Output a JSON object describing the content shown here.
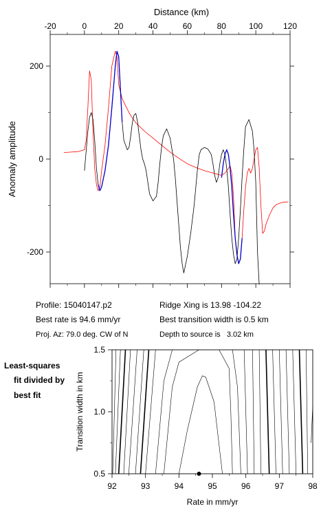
{
  "chart_data": [
    {
      "type": "line",
      "title": "",
      "xlabel": "Distance (km)",
      "ylabel": "Anomaly amplitude",
      "xlim": [
        -20,
        120
      ],
      "ylim": [
        -270,
        270
      ],
      "xticks": [
        "-20",
        "0",
        "20",
        "40",
        "60",
        "80",
        "100",
        "120"
      ],
      "yticks": [
        "200",
        "0",
        "-200"
      ],
      "grid": false,
      "series": [
        {
          "color": "#000000",
          "x": [
            0,
            2,
            3,
            4,
            5,
            6,
            7,
            8,
            9,
            10,
            12,
            14,
            16,
            18,
            19,
            20,
            21,
            22,
            23,
            25,
            26,
            27,
            28,
            29,
            30,
            31,
            32,
            33,
            34,
            35,
            36,
            37,
            38,
            40,
            42,
            43,
            44,
            45,
            46,
            48,
            50,
            52,
            53,
            54,
            55,
            56,
            57,
            58,
            60,
            62,
            64,
            65,
            66,
            67,
            68,
            70,
            72,
            74,
            75,
            76,
            77,
            78,
            79,
            80,
            81,
            82,
            83,
            84,
            85,
            86,
            87,
            88,
            89,
            90,
            91,
            92,
            93,
            94,
            96,
            98,
            99,
            100,
            101,
            102
          ],
          "y": [
            -25,
            60,
            90,
            100,
            85,
            40,
            -20,
            -55,
            -68,
            -60,
            -25,
            30,
            110,
            200,
            232,
            220,
            150,
            80,
            40,
            20,
            25,
            50,
            80,
            95,
            98,
            80,
            50,
            20,
            0,
            -10,
            -25,
            -50,
            -75,
            -90,
            -80,
            -50,
            -10,
            25,
            50,
            65,
            45,
            0,
            -40,
            -90,
            -140,
            -190,
            -225,
            -245,
            -210,
            -160,
            -100,
            -60,
            -20,
            10,
            20,
            25,
            22,
            10,
            -10,
            -35,
            -50,
            -40,
            -10,
            10,
            20,
            10,
            -20,
            -60,
            -120,
            -170,
            -205,
            -225,
            -215,
            -170,
            -110,
            -40,
            20,
            70,
            85,
            60,
            20,
            -50,
            -200,
            -300
          ],
          "name": ""
        },
        {
          "color": "#0000cc",
          "x": [
            8,
            9,
            10,
            12,
            14,
            16,
            18,
            19,
            20,
            21,
            22
          ],
          "y": [
            -55,
            -68,
            -60,
            -25,
            30,
            110,
            200,
            232,
            220,
            150,
            80
          ],
          "name": ""
        },
        {
          "color": "#0000cc",
          "x": [
            80,
            81,
            82,
            83,
            84,
            85,
            86,
            87,
            88,
            89,
            90,
            91,
            92
          ],
          "y": [
            -40,
            -10,
            10,
            20,
            10,
            -20,
            -60,
            -120,
            -170,
            -205,
            -225,
            -215,
            -170
          ],
          "name": ""
        },
        {
          "color": "#ff0000",
          "x": [
            -12,
            -8,
            -4,
            0,
            1,
            2,
            3,
            4,
            5,
            6,
            7,
            8,
            9,
            10,
            12,
            14,
            16,
            18,
            19,
            20,
            22,
            24,
            26,
            28,
            30,
            35,
            40,
            45,
            50,
            55,
            60,
            65,
            70,
            75,
            80,
            82,
            84,
            85,
            86,
            87,
            88,
            89,
            90,
            91,
            92,
            93,
            94,
            95,
            96,
            97,
            98,
            99,
            100,
            101,
            102,
            103,
            104,
            105,
            106,
            108,
            110,
            112,
            114,
            116,
            119
          ],
          "y": [
            14,
            15,
            16,
            20,
            40,
            110,
            190,
            170,
            60,
            -20,
            -55,
            -68,
            -60,
            -25,
            30,
            110,
            200,
            232,
            220,
            160,
            130,
            115,
            100,
            88,
            78,
            60,
            45,
            30,
            15,
            2,
            -10,
            -18,
            -25,
            -30,
            -35,
            -30,
            -20,
            -15,
            -30,
            -80,
            -170,
            -205,
            -225,
            -215,
            -170,
            -110,
            -60,
            -30,
            -20,
            -30,
            -20,
            0,
            20,
            25,
            -20,
            -100,
            -160,
            -155,
            -140,
            -120,
            -105,
            -98,
            -95,
            -93,
            -92
          ],
          "name": ""
        }
      ]
    },
    {
      "type": "contour",
      "title": "",
      "xlabel": "Rate in mm/yr",
      "ylabel": "Transition width in km",
      "xlim": [
        92,
        98
      ],
      "ylim": [
        0.5,
        1.5
      ],
      "xticks": [
        "92",
        "93",
        "94",
        "95",
        "96",
        "97",
        "98"
      ],
      "yticks": [
        "1.5",
        "1.0",
        "0.5"
      ],
      "grid": false,
      "best_fit": {
        "x": 94.6,
        "y": 0.5
      },
      "contours": [
        {
          "bold": false,
          "x": [
            94.0,
            94.25,
            94.55,
            94.7,
            94.8,
            95.05,
            95.3
          ],
          "y": [
            0.5,
            0.85,
            1.2,
            1.29,
            1.28,
            1.08,
            0.5
          ]
        },
        {
          "bold": false,
          "x": [
            93.55,
            93.8,
            94.0,
            94.6
          ],
          "y": [
            0.5,
            1.2,
            1.4,
            1.5
          ]
        },
        {
          "bold": false,
          "x": [
            95.6,
            95.55,
            95.5,
            95.2
          ],
          "y": [
            0.5,
            1.0,
            1.35,
            1.5
          ]
        },
        {
          "bold": false,
          "x": [
            93.3,
            93.55,
            93.8
          ],
          "y": [
            0.5,
            1.25,
            1.5
          ]
        },
        {
          "bold": false,
          "x": [
            95.85,
            95.75,
            95.6
          ],
          "y": [
            0.5,
            1.2,
            1.5
          ]
        },
        {
          "bold": false,
          "x": [
            93.0,
            93.3
          ],
          "y": [
            0.5,
            1.5
          ]
        },
        {
          "bold": false,
          "x": [
            96.05,
            95.95
          ],
          "y": [
            0.5,
            1.5
          ]
        },
        {
          "bold": true,
          "x": [
            92.85,
            93.1
          ],
          "y": [
            0.5,
            1.5
          ]
        },
        {
          "bold": false,
          "x": [
            96.25,
            96.2
          ],
          "y": [
            0.5,
            1.5
          ]
        },
        {
          "bold": false,
          "x": [
            92.7,
            92.95
          ],
          "y": [
            0.5,
            1.5
          ]
        },
        {
          "bold": false,
          "x": [
            96.45,
            96.4
          ],
          "y": [
            0.5,
            1.5
          ]
        },
        {
          "bold": false,
          "x": [
            92.5,
            92.75
          ],
          "y": [
            0.5,
            1.5
          ]
        },
        {
          "bold": true,
          "x": [
            96.7,
            96.6
          ],
          "y": [
            0.5,
            1.5
          ]
        },
        {
          "bold": false,
          "x": [
            92.35,
            92.55
          ],
          "y": [
            0.5,
            1.5
          ]
        },
        {
          "bold": false,
          "x": [
            96.9,
            96.8
          ],
          "y": [
            0.5,
            1.5
          ]
        },
        {
          "bold": true,
          "x": [
            92.2,
            92.4
          ],
          "y": [
            0.5,
            1.5
          ]
        },
        {
          "bold": false,
          "x": [
            97.1,
            97.0
          ],
          "y": [
            0.5,
            1.5
          ]
        },
        {
          "bold": false,
          "x": [
            92.1,
            92.25
          ],
          "y": [
            0.5,
            1.5
          ]
        },
        {
          "bold": false,
          "x": [
            97.3,
            97.2
          ],
          "y": [
            0.5,
            1.5
          ]
        },
        {
          "bold": false,
          "x": [
            92.02,
            92.12
          ],
          "y": [
            0.5,
            1.5
          ]
        },
        {
          "bold": false,
          "x": [
            97.5,
            97.4
          ],
          "y": [
            0.5,
            1.5
          ]
        },
        {
          "bold": true,
          "x": [
            97.7,
            97.6
          ],
          "y": [
            0.5,
            1.5
          ]
        },
        {
          "bold": false,
          "x": [
            97.85,
            97.8
          ],
          "y": [
            0.5,
            1.5
          ]
        },
        {
          "bold": false,
          "x": [
            97.95,
            98.0
          ],
          "y": [
            0.75,
            1.05
          ]
        }
      ]
    }
  ],
  "info": {
    "profile": "Profile: 15040147.p2",
    "ridge_xing": "Ridge Xing is 13.98 -104.22",
    "best_rate": "Best rate is 94.6 mm/yr",
    "best_transition": "Best transition width is 0.5 km",
    "proj_az": "Proj. Az: 79.0 deg. CW of N",
    "depth": "Depth to source is   3.02 km"
  },
  "side_note": {
    "line1": "Least-squares",
    "line2": "fit divided by",
    "line3": "best fit"
  }
}
